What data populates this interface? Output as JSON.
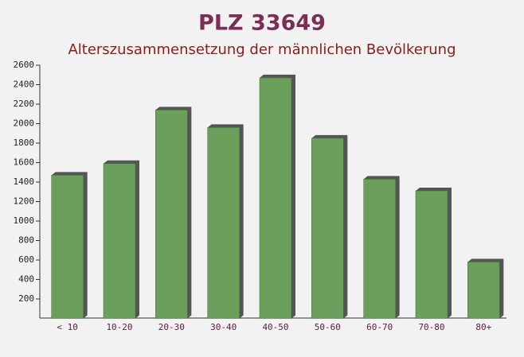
{
  "chart_data": {
    "type": "bar",
    "title": "PLZ 33649",
    "subtitle": "Alterszusammensetzung der männlichen Bevölkerung",
    "categories": [
      "< 10",
      "10-20",
      "20-30",
      "30-40",
      "40-50",
      "50-60",
      "60-70",
      "70-80",
      "80+"
    ],
    "values": [
      1470,
      1590,
      2140,
      1960,
      2470,
      1850,
      1430,
      1310,
      580
    ],
    "color": "#6a9f5c",
    "ylim": [
      0,
      2600
    ],
    "yticks": [
      200,
      400,
      600,
      800,
      1000,
      1200,
      1400,
      1600,
      1800,
      2000,
      2200,
      2400,
      2600
    ]
  }
}
